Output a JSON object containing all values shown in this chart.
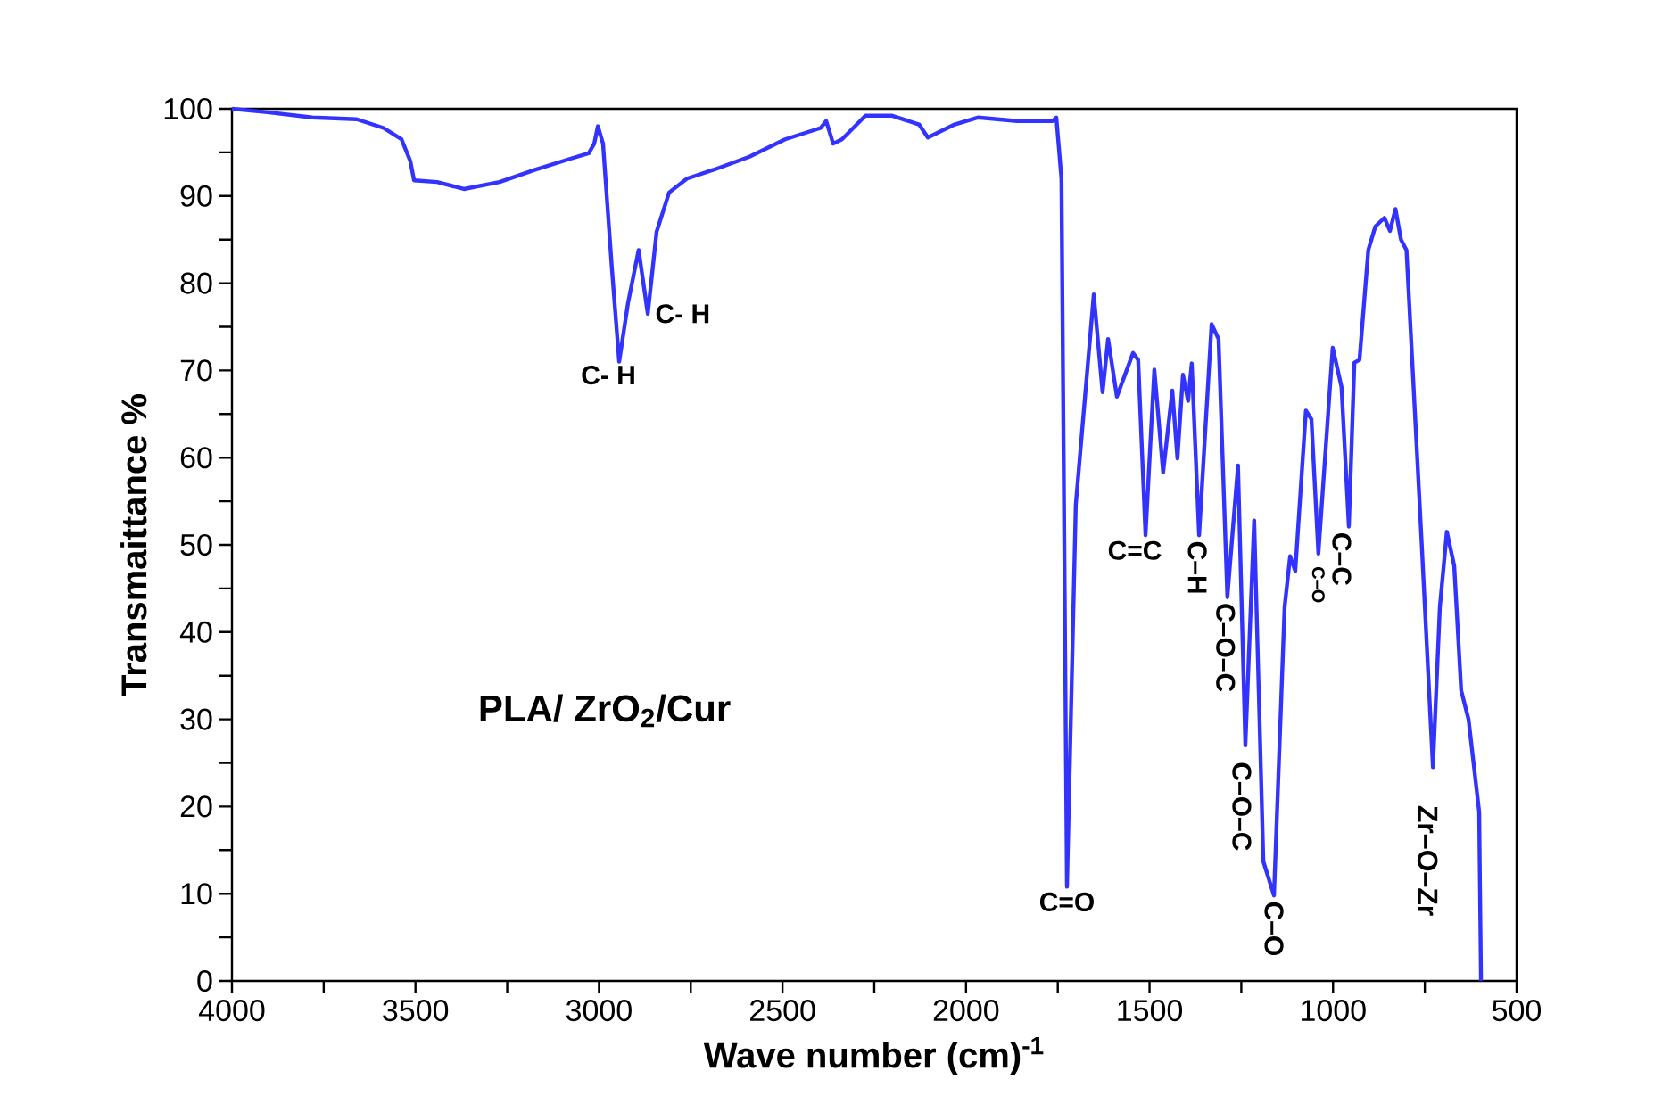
{
  "chart_data": {
    "type": "line",
    "xlabel": "Wave number (cm)$^{-1}$",
    "ylabel": "Transmaittance %",
    "xlim": [
      4000,
      500
    ],
    "ylim": [
      0,
      100
    ],
    "xticks": [
      4000,
      {
        "value": 3750,
        "label": null
      },
      3500,
      {
        "value": 3250,
        "label": null
      },
      3000,
      {
        "value": 2750,
        "label": null
      },
      2500,
      {
        "value": 2250,
        "label": null
      },
      2000,
      {
        "value": 1750,
        "label": null
      },
      1500,
      {
        "value": 1250,
        "label": null
      },
      1000,
      {
        "value": 750,
        "label": null
      },
      500
    ],
    "yticks": [
      0,
      {
        "value": 5,
        "label": null
      },
      10,
      {
        "value": 15,
        "label": null
      },
      20,
      {
        "value": 25,
        "label": null
      },
      30,
      {
        "value": 35,
        "label": null
      },
      40,
      {
        "value": 45,
        "label": null
      },
      50,
      {
        "value": 55,
        "label": null
      },
      60,
      {
        "value": 65,
        "label": null
      },
      70,
      {
        "value": 75,
        "label": null
      },
      80,
      {
        "value": 85,
        "label": null
      },
      90,
      {
        "value": 95,
        "label": null
      },
      100
    ],
    "marker": "none",
    "line_style": "solid",
    "series": [
      {
        "color": "#3333ff",
        "x": [
          4000,
          3903,
          3781,
          3660,
          3587,
          3538,
          3514,
          3504,
          3441,
          3368,
          3271,
          3174,
          3076,
          3028,
          3013,
          3003,
          2989,
          2965,
          2945,
          2921,
          2892,
          2867,
          2843,
          2809,
          2760,
          2688,
          2590,
          2493,
          2396,
          2381,
          2362,
          2338,
          2274,
          2201,
          2128,
          2104,
          2031,
          1968,
          1861,
          1764,
          1754,
          1740,
          1725,
          1701,
          1652,
          1628,
          1613,
          1589,
          1545,
          1531,
          1511,
          1487,
          1463,
          1438,
          1424,
          1409,
          1395,
          1385,
          1365,
          1331,
          1312,
          1288,
          1259,
          1239,
          1215,
          1190,
          1161,
          1132,
          1117,
          1103,
          1074,
          1059,
          1040,
          1001,
          977,
          957,
          942,
          928,
          904,
          885,
          860,
          845,
          830,
          815,
          800,
          758,
          728,
          709,
          690,
          670,
          651,
          631,
          602,
          597
        ],
        "values": [
          100,
          99.6,
          99,
          98.8,
          97.8,
          96.5,
          94,
          91.8,
          91.6,
          90.8,
          91.6,
          93,
          94.3,
          94.9,
          96,
          98,
          96,
          81.8,
          71,
          77.7,
          83.8,
          76.5,
          85.9,
          90.4,
          92,
          93,
          94.5,
          96.5,
          97.8,
          98.6,
          96,
          96.5,
          99.2,
          99.2,
          98.2,
          96.7,
          98.2,
          99,
          98.6,
          98.6,
          99,
          92,
          10.8,
          54.6,
          78.7,
          67.5,
          73.6,
          67,
          72,
          71.2,
          51.1,
          70.1,
          58.3,
          67.7,
          59.9,
          69.5,
          66.5,
          70.8,
          51.1,
          75.3,
          73.6,
          44,
          59.1,
          27,
          52.8,
          13.7,
          9.8,
          42.9,
          48.7,
          47,
          65.4,
          64.4,
          49,
          72.6,
          68.1,
          52.1,
          70.9,
          71.2,
          83.8,
          86.5,
          87.5,
          86,
          88.5,
          85,
          83.8,
          49.7,
          24.5,
          42.9,
          51.5,
          47.6,
          33.3,
          30,
          19.4,
          0
        ]
      }
    ],
    "annotations": [
      {
        "text": "C- H",
        "x": 2945,
        "y": 71
      },
      {
        "text": "C- H",
        "x": 2867,
        "y": 76.5
      },
      {
        "text": "C=O",
        "x": 1725,
        "y": 10.8
      },
      {
        "text": "C=C",
        "x": 1511,
        "y": 51.1
      },
      {
        "text": "C–H",
        "x": 1365,
        "y": 51.1
      },
      {
        "text": "C–O–C",
        "x": 1288,
        "y": 44
      },
      {
        "text": "C–O–C",
        "x": 1239,
        "y": 27
      },
      {
        "text": "C–O",
        "x": 1161,
        "y": 9.8
      },
      {
        "text": "C–O",
        "x": 1040,
        "y": 49
      },
      {
        "text": "C–C",
        "x": 957,
        "y": 52.1
      },
      {
        "text": "Zr–O–Zr",
        "x": 728,
        "y": 24.5
      },
      "PLA/ ZrO$_{2}$/Cur"
    ]
  }
}
